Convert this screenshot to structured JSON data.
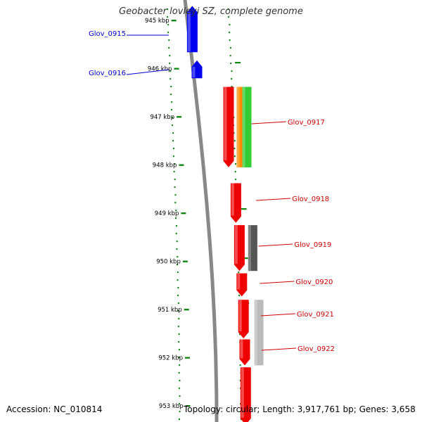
{
  "title": "Geobacter lovleyi SZ, complete genome",
  "footer": {
    "accession_label": "Accession:",
    "accession": "NC_010814",
    "topology_label": "Topology:",
    "topology": "circular",
    "length_label": "Length:",
    "length": "3,917,761 bp",
    "genes_label": "Genes:",
    "genes": "3,658"
  },
  "position_ticks": [
    {
      "label": "945 kbp",
      "kbp": 945
    },
    {
      "label": "946 kbp",
      "kbp": 946
    },
    {
      "label": "947 kbp",
      "kbp": 947
    },
    {
      "label": "948 kbp",
      "kbp": 948
    },
    {
      "label": "949 kbp",
      "kbp": 949
    },
    {
      "label": "950 kbp",
      "kbp": 950
    },
    {
      "label": "951 kbp",
      "kbp": 951
    },
    {
      "label": "952 kbp",
      "kbp": 952
    },
    {
      "label": "953 kbp",
      "kbp": 953
    }
  ],
  "genes": [
    {
      "name": "Glov_0915",
      "strand": "reverse",
      "start_kbp": 944.7,
      "end_kbp": 945.66,
      "color": "#0000ee"
    },
    {
      "name": "Glov_0916",
      "strand": "reverse",
      "start_kbp": 945.83,
      "end_kbp": 946.2,
      "color": "#0000ee"
    },
    {
      "name": "Glov_0917",
      "strand": "forward",
      "start_kbp": 946.38,
      "end_kbp": 948.05,
      "color": "#ee0000"
    },
    {
      "name": "Glov_0918",
      "strand": "forward",
      "start_kbp": 948.38,
      "end_kbp": 949.2,
      "color": "#ee0000"
    },
    {
      "name": "Glov_0919",
      "strand": "forward",
      "start_kbp": 949.25,
      "end_kbp": 950.2,
      "color": "#ee0000"
    },
    {
      "name": "Glov_0920",
      "strand": "forward",
      "start_kbp": 950.25,
      "end_kbp": 950.73,
      "color": "#ee0000"
    },
    {
      "name": "Glov_0921",
      "strand": "forward",
      "start_kbp": 950.8,
      "end_kbp": 951.6,
      "color": "#ee0000"
    },
    {
      "name": "Glov_0922",
      "strand": "forward",
      "start_kbp": 951.62,
      "end_kbp": 952.16,
      "color": "#ee0000"
    },
    {
      "name": "",
      "strand": "forward",
      "start_kbp": 952.2,
      "end_kbp": 953.4,
      "color": "#ee0000"
    }
  ],
  "feature_hits": [
    {
      "start_kbp": 946.38,
      "end_kbp": 948.05,
      "color": "#ff8c00"
    },
    {
      "start_kbp": 946.38,
      "end_kbp": 948.05,
      "color": "#33cc33"
    },
    {
      "start_kbp": 949.25,
      "end_kbp": 950.2,
      "color": "#555555"
    },
    {
      "start_kbp": 950.8,
      "end_kbp": 952.16,
      "color": "#bbbbbb"
    }
  ],
  "colors": {
    "backbone": "#888888",
    "forward_gene": "#ee0000",
    "reverse_gene": "#0000ee",
    "gc_skew": "#118811",
    "tick_text": "#000000",
    "label_forward": "#cc0000",
    "label_reverse": "#0000cc"
  }
}
